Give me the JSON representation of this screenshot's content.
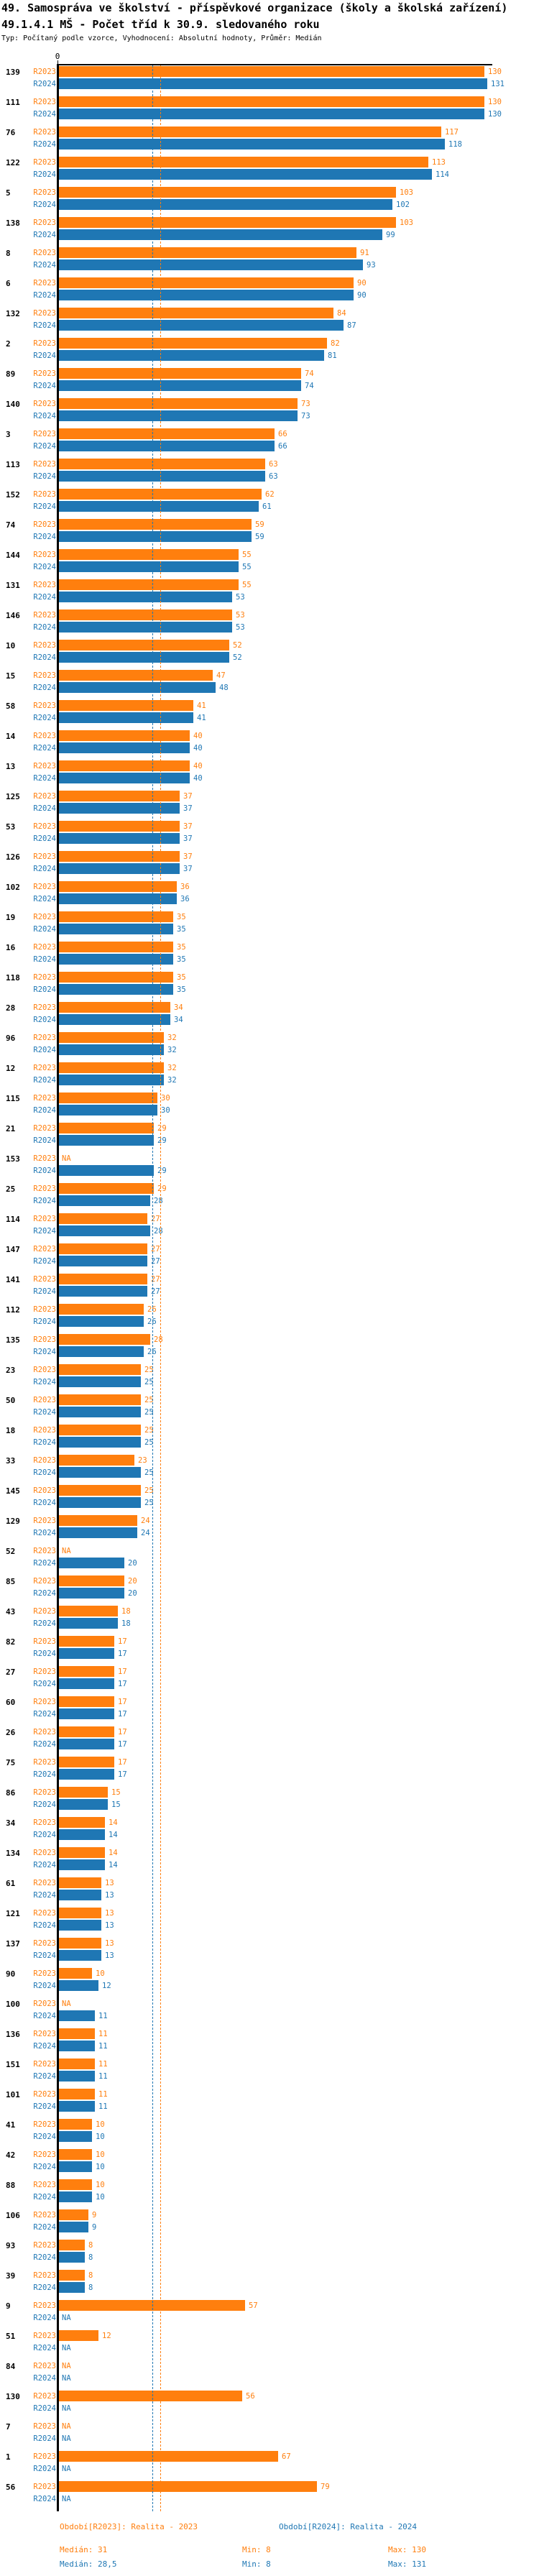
{
  "title": "49. Samospráva ve školství - příspěvkové organizace (školy a školská zařízení)",
  "subtitle": "49.1.4.1 MŠ - Počet tříd k 30.9. sledovaného roku",
  "meta": "Typ: Počítaný podle vzorce, Vyhodnocení: Absolutní hodnoty, Průměr: Medián",
  "na_label": "NA",
  "colors": {
    "r2023": "#ff7f0e",
    "r2024": "#1f77b4",
    "axis": "#000000"
  },
  "axis": {
    "zero_tick": "0"
  },
  "legend": {
    "r2023": "Období[R2023]: Realita - 2023",
    "r2024": "Období[R2024]: Realita - 2024"
  },
  "stats": {
    "r2023": {
      "median": "Medián: 31",
      "min": "Min: 8",
      "max": "Max: 130"
    },
    "r2024": {
      "median": "Medián: 28,5",
      "min": "Min: 8",
      "max": "Max: 131"
    }
  },
  "chart_data": {
    "type": "bar",
    "orientation": "horizontal",
    "title": "49.1.4.1 MŠ - Počet tříd k 30.9. sledovaného roku",
    "series_names": [
      "R2023",
      "R2024"
    ],
    "xlim": [
      0,
      131
    ],
    "x_tick_labels": [
      "0"
    ],
    "grid": false,
    "medians": {
      "R2023": 31,
      "R2024": 28.5
    },
    "groups": [
      {
        "id": "139",
        "R2023": 130,
        "R2024": 131
      },
      {
        "id": "111",
        "R2023": 130,
        "R2024": 130
      },
      {
        "id": "76",
        "R2023": 117,
        "R2024": 118
      },
      {
        "id": "122",
        "R2023": 113,
        "R2024": 114
      },
      {
        "id": "5",
        "R2023": 103,
        "R2024": 102
      },
      {
        "id": "138",
        "R2023": 103,
        "R2024": 99
      },
      {
        "id": "8",
        "R2023": 91,
        "R2024": 93
      },
      {
        "id": "6",
        "R2023": 90,
        "R2024": 90
      },
      {
        "id": "132",
        "R2023": 84,
        "R2024": 87
      },
      {
        "id": "2",
        "R2023": 82,
        "R2024": 81
      },
      {
        "id": "89",
        "R2023": 74,
        "R2024": 74
      },
      {
        "id": "140",
        "R2023": 73,
        "R2024": 73
      },
      {
        "id": "3",
        "R2023": 66,
        "R2024": 66
      },
      {
        "id": "113",
        "R2023": 63,
        "R2024": 63
      },
      {
        "id": "152",
        "R2023": 62,
        "R2024": 61
      },
      {
        "id": "74",
        "R2023": 59,
        "R2024": 59
      },
      {
        "id": "144",
        "R2023": 55,
        "R2024": 55
      },
      {
        "id": "131",
        "R2023": 55,
        "R2024": 53
      },
      {
        "id": "146",
        "R2023": 53,
        "R2024": 53
      },
      {
        "id": "10",
        "R2023": 52,
        "R2024": 52
      },
      {
        "id": "15",
        "R2023": 47,
        "R2024": 48
      },
      {
        "id": "58",
        "R2023": 41,
        "R2024": 41
      },
      {
        "id": "14",
        "R2023": 40,
        "R2024": 40
      },
      {
        "id": "13",
        "R2023": 40,
        "R2024": 40
      },
      {
        "id": "125",
        "R2023": 37,
        "R2024": 37
      },
      {
        "id": "53",
        "R2023": 37,
        "R2024": 37
      },
      {
        "id": "126",
        "R2023": 37,
        "R2024": 37
      },
      {
        "id": "102",
        "R2023": 36,
        "R2024": 36
      },
      {
        "id": "19",
        "R2023": 35,
        "R2024": 35
      },
      {
        "id": "16",
        "R2023": 35,
        "R2024": 35
      },
      {
        "id": "118",
        "R2023": 35,
        "R2024": 35
      },
      {
        "id": "28",
        "R2023": 34,
        "R2024": 34
      },
      {
        "id": "96",
        "R2023": 32,
        "R2024": 32
      },
      {
        "id": "12",
        "R2023": 32,
        "R2024": 32
      },
      {
        "id": "115",
        "R2023": 30,
        "R2024": 30
      },
      {
        "id": "21",
        "R2023": 29,
        "R2024": 29
      },
      {
        "id": "153",
        "R2023": null,
        "R2024": 29
      },
      {
        "id": "25",
        "R2023": 29,
        "R2024": 28
      },
      {
        "id": "114",
        "R2023": 27,
        "R2024": 28
      },
      {
        "id": "147",
        "R2023": 27,
        "R2024": 27
      },
      {
        "id": "141",
        "R2023": 27,
        "R2024": 27
      },
      {
        "id": "112",
        "R2023": 26,
        "R2024": 26
      },
      {
        "id": "135",
        "R2023": 28,
        "R2024": 26
      },
      {
        "id": "23",
        "R2023": 25,
        "R2024": 25
      },
      {
        "id": "50",
        "R2023": 25,
        "R2024": 25
      },
      {
        "id": "18",
        "R2023": 25,
        "R2024": 25
      },
      {
        "id": "33",
        "R2023": 23,
        "R2024": 25
      },
      {
        "id": "145",
        "R2023": 25,
        "R2024": 25
      },
      {
        "id": "129",
        "R2023": 24,
        "R2024": 24
      },
      {
        "id": "52",
        "R2023": null,
        "R2024": 20
      },
      {
        "id": "85",
        "R2023": 20,
        "R2024": 20
      },
      {
        "id": "43",
        "R2023": 18,
        "R2024": 18
      },
      {
        "id": "82",
        "R2023": 17,
        "R2024": 17
      },
      {
        "id": "27",
        "R2023": 17,
        "R2024": 17
      },
      {
        "id": "60",
        "R2023": 17,
        "R2024": 17
      },
      {
        "id": "26",
        "R2023": 17,
        "R2024": 17
      },
      {
        "id": "75",
        "R2023": 17,
        "R2024": 17
      },
      {
        "id": "86",
        "R2023": 15,
        "R2024": 15
      },
      {
        "id": "34",
        "R2023": 14,
        "R2024": 14
      },
      {
        "id": "134",
        "R2023": 14,
        "R2024": 14
      },
      {
        "id": "61",
        "R2023": 13,
        "R2024": 13
      },
      {
        "id": "121",
        "R2023": 13,
        "R2024": 13
      },
      {
        "id": "137",
        "R2023": 13,
        "R2024": 13
      },
      {
        "id": "90",
        "R2023": 10,
        "R2024": 12
      },
      {
        "id": "100",
        "R2023": null,
        "R2024": 11
      },
      {
        "id": "136",
        "R2023": 11,
        "R2024": 11
      },
      {
        "id": "151",
        "R2023": 11,
        "R2024": 11
      },
      {
        "id": "101",
        "R2023": 11,
        "R2024": 11
      },
      {
        "id": "41",
        "R2023": 10,
        "R2024": 10
      },
      {
        "id": "42",
        "R2023": 10,
        "R2024": 10
      },
      {
        "id": "88",
        "R2023": 10,
        "R2024": 10
      },
      {
        "id": "106",
        "R2023": 9,
        "R2024": 9
      },
      {
        "id": "93",
        "R2023": 8,
        "R2024": 8
      },
      {
        "id": "39",
        "R2023": 8,
        "R2024": 8
      },
      {
        "id": "9",
        "R2023": 57,
        "R2024": null
      },
      {
        "id": "51",
        "R2023": 12,
        "R2024": null
      },
      {
        "id": "84",
        "R2023": null,
        "R2024": null
      },
      {
        "id": "130",
        "R2023": 56,
        "R2024": null
      },
      {
        "id": "7",
        "R2023": null,
        "R2024": null
      },
      {
        "id": "1",
        "R2023": 67,
        "R2024": null
      },
      {
        "id": "56",
        "R2023": 79,
        "R2024": null
      }
    ]
  }
}
